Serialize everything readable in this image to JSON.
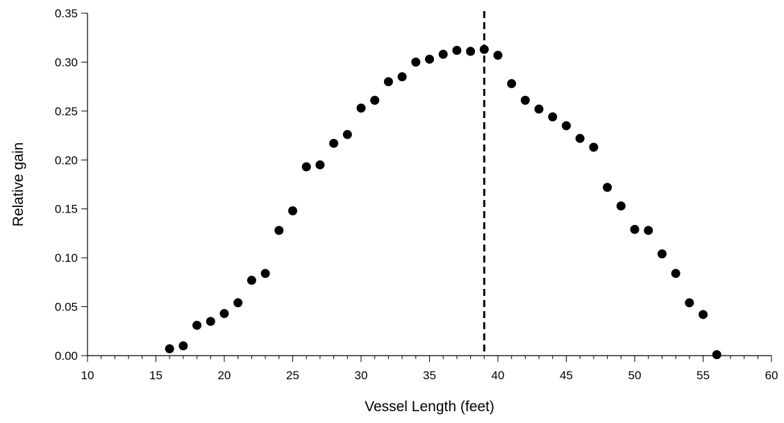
{
  "chart_data": {
    "type": "scatter",
    "title": "",
    "xlabel": "Vessel Length (feet)",
    "ylabel": "Relative gain",
    "xlim": [
      10,
      60
    ],
    "ylim": [
      0,
      0.35
    ],
    "x_major_ticks": [
      10,
      15,
      20,
      25,
      30,
      35,
      40,
      45,
      50,
      55,
      60
    ],
    "x_minor_step": 1,
    "y_ticks": [
      0.0,
      0.05,
      0.1,
      0.15,
      0.2,
      0.25,
      0.3,
      0.35
    ],
    "x_tick_labels": [
      "10",
      "15",
      "20",
      "25",
      "30",
      "35",
      "40",
      "45",
      "50",
      "55",
      "60"
    ],
    "y_tick_labels": [
      "0.00",
      "0.05",
      "0.10",
      "0.15",
      "0.20",
      "0.25",
      "0.30",
      "0.35"
    ],
    "grid": false,
    "legend": "none",
    "reference_line": {
      "orientation": "vertical",
      "x": 39,
      "style": "dashed",
      "color": "#000000"
    },
    "marker_color": "#000000",
    "series": [
      {
        "x": [
          16,
          17,
          18,
          19,
          20,
          21,
          22,
          23,
          24,
          25,
          26,
          27,
          28,
          29,
          30,
          31,
          32,
          33,
          34,
          35,
          36,
          37,
          38,
          39,
          40,
          41,
          42,
          43,
          44,
          45,
          46,
          47,
          48,
          49,
          50,
          51,
          52,
          53,
          54,
          55,
          56
        ],
        "y": [
          0.007,
          0.01,
          0.031,
          0.035,
          0.043,
          0.054,
          0.077,
          0.084,
          0.128,
          0.148,
          0.193,
          0.195,
          0.217,
          0.226,
          0.253,
          0.261,
          0.28,
          0.285,
          0.3,
          0.303,
          0.308,
          0.312,
          0.311,
          0.313,
          0.307,
          0.278,
          0.261,
          0.252,
          0.244,
          0.235,
          0.222,
          0.213,
          0.172,
          0.153,
          0.129,
          0.128,
          0.104,
          0.084,
          0.054,
          0.042,
          0.001
        ]
      }
    ]
  }
}
